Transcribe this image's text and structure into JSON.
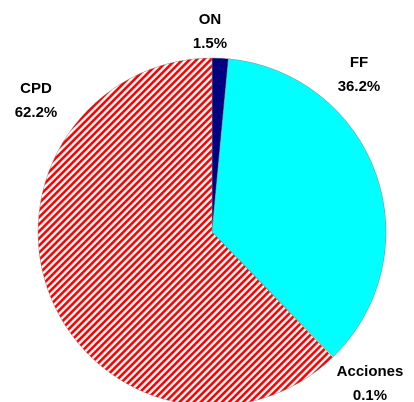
{
  "chart_data": {
    "type": "pie",
    "categories": [
      "ON",
      "FF",
      "Acciones",
      "CPD"
    ],
    "values": [
      1.5,
      36.2,
      0.1,
      62.2
    ],
    "value_labels": [
      "1.5%",
      "36.2%",
      "0.1%",
      "62.2%"
    ],
    "colors": [
      "#000080",
      "#00ffff",
      "#ccffcc",
      "#ff0000"
    ],
    "hatched": [
      false,
      false,
      false,
      true
    ]
  }
}
